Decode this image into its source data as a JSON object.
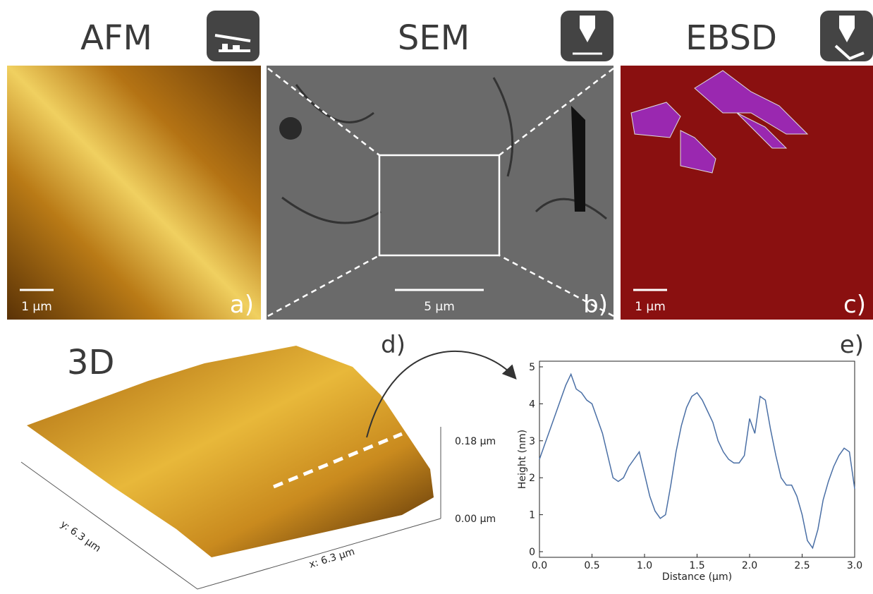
{
  "panels": [
    {
      "title": "AFM",
      "scale": "1 µm",
      "label": "a)"
    },
    {
      "title": "SEM",
      "scale": "5 µm",
      "label": "b)"
    },
    {
      "title": "EBSD",
      "scale": "1 µm",
      "label": "c)"
    }
  ],
  "surface": {
    "title": "3D",
    "label": "d)",
    "z_top": "0.18 µm",
    "z_bottom": "0.00 µm",
    "x_label": "x: 6.3 µm",
    "y_label": "y: 6.3 µm"
  },
  "chart_data": {
    "type": "line",
    "label": "e)",
    "x_label": "Distance (μm)",
    "y_label": "Height (nm)",
    "x": [
      0.0,
      0.05,
      0.1,
      0.15,
      0.2,
      0.25,
      0.3,
      0.35,
      0.4,
      0.45,
      0.5,
      0.55,
      0.6,
      0.65,
      0.7,
      0.75,
      0.8,
      0.85,
      0.9,
      0.95,
      1.0,
      1.05,
      1.1,
      1.15,
      1.2,
      1.25,
      1.3,
      1.35,
      1.4,
      1.45,
      1.5,
      1.55,
      1.6,
      1.65,
      1.7,
      1.75,
      1.8,
      1.85,
      1.9,
      1.95,
      2.0,
      2.05,
      2.1,
      2.15,
      2.2,
      2.25,
      2.3,
      2.35,
      2.4,
      2.45,
      2.5,
      2.55,
      2.6,
      2.65,
      2.7,
      2.75,
      2.8,
      2.85,
      2.9,
      2.95,
      3.0
    ],
    "series": [
      {
        "color": "#4a6fa5",
        "values": [
          2.5,
          2.9,
          3.3,
          3.7,
          4.1,
          4.5,
          4.8,
          4.4,
          4.3,
          4.1,
          4.0,
          3.6,
          3.2,
          2.6,
          2.0,
          1.9,
          2.0,
          2.3,
          2.5,
          2.7,
          2.1,
          1.5,
          1.1,
          0.9,
          1.0,
          1.8,
          2.7,
          3.4,
          3.9,
          4.2,
          4.3,
          4.1,
          3.8,
          3.5,
          3.0,
          2.7,
          2.5,
          2.4,
          2.4,
          2.6,
          3.6,
          3.2,
          4.2,
          4.1,
          3.3,
          2.6,
          2.0,
          1.8,
          1.8,
          1.5,
          1.0,
          0.3,
          0.1,
          0.6,
          1.4,
          1.9,
          2.3,
          2.6,
          2.8,
          2.7,
          1.7
        ]
      }
    ],
    "xlim": [
      0,
      3
    ],
    "ylim": [
      0,
      5
    ],
    "xticks": [
      {
        "value": 0,
        "label": "0.0"
      },
      {
        "value": 0.5,
        "label": "0.5"
      },
      {
        "value": 1,
        "label": "1.0"
      },
      {
        "value": 1.5,
        "label": "1.5"
      },
      {
        "value": 2,
        "label": "2.0"
      },
      {
        "value": 2.5,
        "label": "2.5"
      },
      {
        "value": 3,
        "label": "3.0"
      }
    ],
    "yticks": [
      0,
      1,
      2,
      3,
      4,
      5
    ]
  }
}
